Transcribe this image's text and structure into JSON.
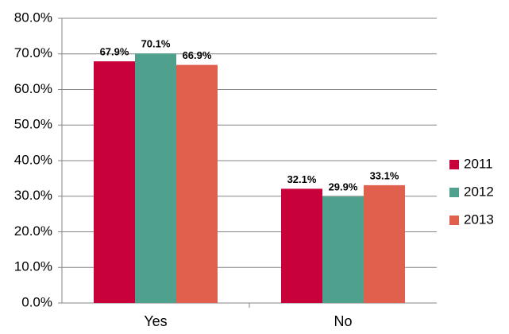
{
  "chart_data": {
    "type": "bar",
    "categories": [
      "Yes",
      "No"
    ],
    "series": [
      {
        "name": "2011",
        "color": "#c8013a",
        "values": [
          67.9,
          32.1
        ],
        "value_labels": [
          "67.9%",
          "32.1%"
        ]
      },
      {
        "name": "2012",
        "color": "#4fa18e",
        "values": [
          70.1,
          29.9
        ],
        "value_labels": [
          "70.1%",
          "29.9%"
        ]
      },
      {
        "name": "2013",
        "color": "#e0604d",
        "values": [
          66.9,
          33.1
        ],
        "value_labels": [
          "66.9%",
          "33.1%"
        ]
      }
    ],
    "ylim": [
      0,
      80
    ],
    "yticks": [
      {
        "value": 0,
        "label": "0.0%"
      },
      {
        "value": 10,
        "label": "10.0%"
      },
      {
        "value": 20,
        "label": "20.0%"
      },
      {
        "value": 30,
        "label": "30.0%"
      },
      {
        "value": 40,
        "label": "40.0%"
      },
      {
        "value": 50,
        "label": "50.0%"
      },
      {
        "value": 60,
        "label": "60.0%"
      },
      {
        "value": 70,
        "label": "70.0%"
      },
      {
        "value": 80,
        "label": "80.0%"
      }
    ],
    "grid": true,
    "legend": "right"
  }
}
